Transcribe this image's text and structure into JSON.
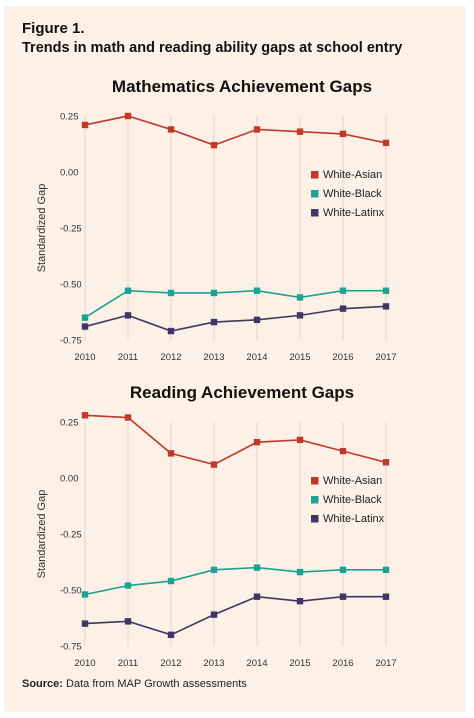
{
  "figure_label": "Figure 1.",
  "figure_title": "Trends in math and reading ability gaps at school entry",
  "source_label": "Source:",
  "source_text": "Data from MAP Growth assessments",
  "colors": {
    "White-Asian": "#c0392b",
    "White-Black": "#1aa392",
    "White-Latinx": "#433563",
    "background": "#fdf0e6",
    "grid": "#d6d6d6"
  },
  "chart_data": [
    {
      "type": "line",
      "title": "Mathematics Achievement Gaps",
      "xlabel": "",
      "ylabel": "Standardized Gap",
      "x": [
        "2010",
        "2011",
        "2012",
        "2013",
        "2014",
        "2015",
        "2016",
        "2017"
      ],
      "y_ticks": [
        0.25,
        0.0,
        -0.25,
        -0.5,
        -0.75
      ],
      "y_tick_labels": [
        "0.25",
        "0.00",
        "-0.25",
        "-0.50",
        "-0.75"
      ],
      "ylim": [
        -0.75,
        0.25
      ],
      "grid": "vertical",
      "legend_position": "right",
      "series": [
        {
          "name": "White-Asian",
          "values": [
            0.21,
            0.25,
            0.19,
            0.12,
            0.19,
            0.18,
            0.17,
            0.13
          ]
        },
        {
          "name": "White-Black",
          "values": [
            -0.65,
            -0.53,
            -0.54,
            -0.54,
            -0.53,
            -0.56,
            -0.53,
            -0.53
          ]
        },
        {
          "name": "White-Latinx",
          "values": [
            -0.69,
            -0.64,
            -0.71,
            -0.67,
            -0.66,
            -0.64,
            -0.61,
            -0.6
          ]
        }
      ]
    },
    {
      "type": "line",
      "title": "Reading Achievement Gaps",
      "xlabel": "",
      "ylabel": "Standardized Gap",
      "x": [
        "2010",
        "2011",
        "2012",
        "2013",
        "2014",
        "2015",
        "2016",
        "2017"
      ],
      "y_ticks": [
        0.25,
        0.0,
        -0.25,
        -0.5,
        -0.75
      ],
      "y_tick_labels": [
        "0.25",
        "0.00",
        "-0.25",
        "-0.50",
        "-0.75"
      ],
      "ylim": [
        -0.75,
        0.25
      ],
      "grid": "vertical",
      "legend_position": "right",
      "series": [
        {
          "name": "White-Asian",
          "values": [
            0.28,
            0.27,
            0.11,
            0.06,
            0.16,
            0.17,
            0.12,
            0.07
          ]
        },
        {
          "name": "White-Black",
          "values": [
            -0.52,
            -0.48,
            -0.46,
            -0.41,
            -0.4,
            -0.42,
            -0.41,
            -0.41
          ]
        },
        {
          "name": "White-Latinx",
          "values": [
            -0.65,
            -0.64,
            -0.7,
            -0.61,
            -0.53,
            -0.55,
            -0.53,
            -0.53
          ]
        }
      ]
    }
  ]
}
